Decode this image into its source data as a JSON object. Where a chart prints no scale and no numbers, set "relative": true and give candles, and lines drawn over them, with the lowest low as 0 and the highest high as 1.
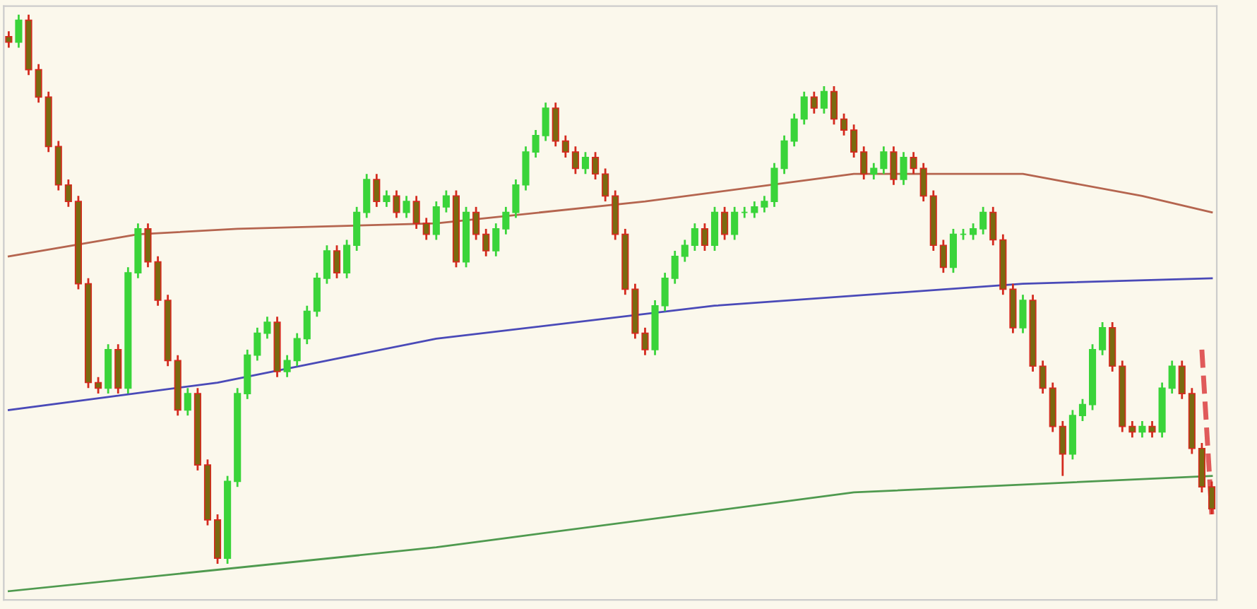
{
  "chart_data": {
    "type": "candlestick",
    "relative": true,
    "categories": [
      null,
      null,
      null,
      null,
      null,
      null,
      null,
      null,
      null,
      null,
      null,
      null,
      null,
      null,
      null,
      null,
      null,
      null,
      null,
      null,
      null,
      null,
      null,
      null,
      null,
      null,
      null,
      null,
      null,
      null,
      null,
      null,
      null,
      null,
      null,
      null,
      null,
      null,
      null,
      null,
      null,
      null,
      null,
      null,
      null,
      null,
      null,
      null,
      null,
      null,
      null,
      null,
      null,
      null,
      null,
      null,
      null,
      null,
      null,
      null,
      null,
      null,
      null,
      null,
      null,
      null,
      null,
      null,
      null,
      null,
      null,
      null,
      null,
      null,
      null,
      null,
      null,
      null,
      null,
      null,
      null,
      null,
      null,
      null,
      null,
      null,
      null,
      null,
      null,
      null,
      null,
      null,
      null,
      null,
      null,
      null,
      null,
      null,
      null,
      null,
      null,
      null,
      null,
      null,
      null,
      null,
      null,
      null,
      null,
      null,
      null,
      null,
      null,
      null,
      null,
      null,
      null,
      null,
      null,
      null,
      null,
      null
    ],
    "ohlc": [
      [
        0.96,
        0.97,
        0.94,
        0.95
      ],
      [
        0.95,
        1.0,
        0.94,
        0.99
      ],
      [
        0.99,
        1.0,
        0.89,
        0.9
      ],
      [
        0.9,
        0.91,
        0.84,
        0.85
      ],
      [
        0.85,
        0.86,
        0.75,
        0.76
      ],
      [
        0.76,
        0.77,
        0.68,
        0.69
      ],
      [
        0.69,
        0.7,
        0.65,
        0.66
      ],
      [
        0.66,
        0.67,
        0.5,
        0.51
      ],
      [
        0.51,
        0.52,
        0.32,
        0.33
      ],
      [
        0.33,
        0.34,
        0.31,
        0.32
      ],
      [
        0.32,
        0.4,
        0.31,
        0.39
      ],
      [
        0.39,
        0.4,
        0.31,
        0.32
      ],
      [
        0.32,
        0.54,
        0.31,
        0.53
      ],
      [
        0.53,
        0.62,
        0.52,
        0.61
      ],
      [
        0.61,
        0.62,
        0.54,
        0.55
      ],
      [
        0.55,
        0.56,
        0.47,
        0.48
      ],
      [
        0.48,
        0.49,
        0.36,
        0.37
      ],
      [
        0.37,
        0.38,
        0.27,
        0.28
      ],
      [
        0.28,
        0.32,
        0.27,
        0.31
      ],
      [
        0.31,
        0.32,
        0.17,
        0.18
      ],
      [
        0.18,
        0.19,
        0.07,
        0.08
      ],
      [
        0.08,
        0.09,
        0.0,
        0.01
      ],
      [
        0.01,
        0.16,
        0.0,
        0.15
      ],
      [
        0.15,
        0.32,
        0.14,
        0.31
      ],
      [
        0.31,
        0.39,
        0.3,
        0.38
      ],
      [
        0.38,
        0.43,
        0.37,
        0.42
      ],
      [
        0.42,
        0.45,
        0.41,
        0.44
      ],
      [
        0.44,
        0.45,
        0.34,
        0.35
      ],
      [
        0.35,
        0.38,
        0.34,
        0.37
      ],
      [
        0.37,
        0.42,
        0.36,
        0.41
      ],
      [
        0.41,
        0.47,
        0.4,
        0.46
      ],
      [
        0.46,
        0.53,
        0.45,
        0.52
      ],
      [
        0.52,
        0.58,
        0.51,
        0.57
      ],
      [
        0.57,
        0.58,
        0.52,
        0.53
      ],
      [
        0.53,
        0.59,
        0.52,
        0.58
      ],
      [
        0.58,
        0.65,
        0.57,
        0.64
      ],
      [
        0.64,
        0.71,
        0.63,
        0.7
      ],
      [
        0.7,
        0.71,
        0.65,
        0.66
      ],
      [
        0.66,
        0.68,
        0.65,
        0.67
      ],
      [
        0.67,
        0.68,
        0.63,
        0.64
      ],
      [
        0.64,
        0.67,
        0.63,
        0.66
      ],
      [
        0.66,
        0.67,
        0.61,
        0.62
      ],
      [
        0.62,
        0.63,
        0.59,
        0.6
      ],
      [
        0.6,
        0.66,
        0.59,
        0.65
      ],
      [
        0.65,
        0.68,
        0.64,
        0.67
      ],
      [
        0.67,
        0.68,
        0.54,
        0.55
      ],
      [
        0.55,
        0.65,
        0.54,
        0.64
      ],
      [
        0.64,
        0.65,
        0.59,
        0.6
      ],
      [
        0.6,
        0.61,
        0.56,
        0.57
      ],
      [
        0.57,
        0.62,
        0.56,
        0.61
      ],
      [
        0.61,
        0.65,
        0.6,
        0.64
      ],
      [
        0.64,
        0.7,
        0.63,
        0.69
      ],
      [
        0.69,
        0.76,
        0.68,
        0.75
      ],
      [
        0.75,
        0.79,
        0.74,
        0.78
      ],
      [
        0.78,
        0.84,
        0.77,
        0.83
      ],
      [
        0.83,
        0.84,
        0.76,
        0.77
      ],
      [
        0.77,
        0.78,
        0.74,
        0.75
      ],
      [
        0.75,
        0.76,
        0.71,
        0.72
      ],
      [
        0.72,
        0.75,
        0.71,
        0.74
      ],
      [
        0.74,
        0.75,
        0.7,
        0.71
      ],
      [
        0.71,
        0.72,
        0.66,
        0.67
      ],
      [
        0.67,
        0.68,
        0.59,
        0.6
      ],
      [
        0.6,
        0.61,
        0.49,
        0.5
      ],
      [
        0.5,
        0.51,
        0.41,
        0.42
      ],
      [
        0.42,
        0.43,
        0.38,
        0.39
      ],
      [
        0.39,
        0.48,
        0.38,
        0.47
      ],
      [
        0.47,
        0.53,
        0.46,
        0.52
      ],
      [
        0.52,
        0.57,
        0.51,
        0.56
      ],
      [
        0.56,
        0.59,
        0.55,
        0.58
      ],
      [
        0.58,
        0.62,
        0.57,
        0.61
      ],
      [
        0.61,
        0.62,
        0.57,
        0.58
      ],
      [
        0.58,
        0.65,
        0.57,
        0.64
      ],
      [
        0.64,
        0.65,
        0.59,
        0.6
      ],
      [
        0.6,
        0.65,
        0.59,
        0.64
      ],
      [
        0.64,
        0.65,
        0.63,
        0.64
      ],
      [
        0.64,
        0.66,
        0.63,
        0.65
      ],
      [
        0.65,
        0.67,
        0.64,
        0.66
      ],
      [
        0.66,
        0.73,
        0.65,
        0.72
      ],
      [
        0.72,
        0.78,
        0.71,
        0.77
      ],
      [
        0.77,
        0.82,
        0.76,
        0.81
      ],
      [
        0.81,
        0.86,
        0.8,
        0.85
      ],
      [
        0.85,
        0.86,
        0.82,
        0.83
      ],
      [
        0.83,
        0.87,
        0.82,
        0.86
      ],
      [
        0.86,
        0.87,
        0.8,
        0.81
      ],
      [
        0.81,
        0.82,
        0.78,
        0.79
      ],
      [
        0.79,
        0.8,
        0.74,
        0.75
      ],
      [
        0.75,
        0.76,
        0.7,
        0.71
      ],
      [
        0.71,
        0.73,
        0.7,
        0.72
      ],
      [
        0.72,
        0.76,
        0.71,
        0.75
      ],
      [
        0.75,
        0.76,
        0.69,
        0.7
      ],
      [
        0.7,
        0.75,
        0.69,
        0.74
      ],
      [
        0.74,
        0.75,
        0.71,
        0.72
      ],
      [
        0.72,
        0.73,
        0.66,
        0.67
      ],
      [
        0.67,
        0.68,
        0.57,
        0.58
      ],
      [
        0.58,
        0.59,
        0.53,
        0.54
      ],
      [
        0.54,
        0.61,
        0.53,
        0.6
      ],
      [
        0.6,
        0.61,
        0.59,
        0.6
      ],
      [
        0.6,
        0.62,
        0.59,
        0.61
      ],
      [
        0.61,
        0.65,
        0.6,
        0.64
      ],
      [
        0.64,
        0.65,
        0.58,
        0.59
      ],
      [
        0.59,
        0.6,
        0.49,
        0.5
      ],
      [
        0.5,
        0.51,
        0.42,
        0.43
      ],
      [
        0.43,
        0.49,
        0.42,
        0.48
      ],
      [
        0.48,
        0.49,
        0.35,
        0.36
      ],
      [
        0.36,
        0.37,
        0.31,
        0.32
      ],
      [
        0.32,
        0.33,
        0.24,
        0.25
      ],
      [
        0.25,
        0.26,
        0.16,
        0.2
      ],
      [
        0.2,
        0.28,
        0.19,
        0.27
      ],
      [
        0.27,
        0.3,
        0.26,
        0.29
      ],
      [
        0.29,
        0.4,
        0.28,
        0.39
      ],
      [
        0.39,
        0.44,
        0.38,
        0.43
      ],
      [
        0.43,
        0.44,
        0.35,
        0.36
      ],
      [
        0.36,
        0.37,
        0.24,
        0.25
      ],
      [
        0.25,
        0.26,
        0.23,
        0.24
      ],
      [
        0.24,
        0.26,
        0.23,
        0.25
      ],
      [
        0.25,
        0.26,
        0.23,
        0.24
      ],
      [
        0.24,
        0.33,
        0.23,
        0.32
      ],
      [
        0.32,
        0.37,
        0.31,
        0.36
      ],
      [
        0.36,
        0.37,
        0.3,
        0.31
      ],
      [
        0.31,
        0.32,
        0.2,
        0.21
      ],
      [
        0.21,
        0.22,
        0.13,
        0.14
      ],
      [
        0.14,
        0.15,
        0.09,
        0.1
      ]
    ],
    "series": [
      {
        "type": "line",
        "color": "#b5654f",
        "values": [
          0.56,
          null,
          null,
          null,
          null,
          null,
          null,
          null,
          null,
          null,
          null,
          null,
          null,
          0.6,
          null,
          null,
          null,
          null,
          null,
          null,
          null,
          null,
          null,
          0.61,
          null,
          null,
          null,
          null,
          null,
          null,
          null,
          null,
          null,
          null,
          null,
          null,
          null,
          null,
          null,
          null,
          null,
          null,
          null,
          0.62,
          null,
          null,
          null,
          null,
          null,
          null,
          null,
          null,
          null,
          null,
          null,
          null,
          null,
          null,
          null,
          null,
          null,
          null,
          null,
          null,
          0.66,
          null,
          null,
          null,
          null,
          null,
          null,
          null,
          null,
          null,
          null,
          null,
          null,
          null,
          null,
          null,
          null,
          null,
          null,
          null,
          null,
          0.71,
          null,
          null,
          null,
          null,
          null,
          null,
          null,
          null,
          null,
          null,
          null,
          null,
          null,
          null,
          null,
          null,
          0.71,
          null,
          null,
          null,
          null,
          null,
          null,
          null,
          null,
          null,
          null,
          null,
          0.67,
          null,
          null,
          null,
          null,
          null,
          null,
          0.64
        ]
      },
      {
        "type": "line",
        "color": "#4a4ab8",
        "values": [
          0.28,
          null,
          null,
          null,
          null,
          null,
          null,
          null,
          null,
          null,
          null,
          null,
          null,
          null,
          null,
          null,
          null,
          null,
          null,
          null,
          null,
          0.33,
          null,
          null,
          null,
          null,
          null,
          null,
          null,
          null,
          null,
          null,
          null,
          null,
          null,
          null,
          null,
          null,
          null,
          null,
          null,
          null,
          null,
          0.41,
          null,
          null,
          null,
          null,
          null,
          null,
          null,
          null,
          null,
          null,
          null,
          null,
          null,
          null,
          null,
          null,
          null,
          null,
          null,
          null,
          null,
          null,
          null,
          null,
          null,
          null,
          null,
          0.47,
          null,
          null,
          null,
          null,
          null,
          null,
          null,
          null,
          null,
          null,
          null,
          null,
          null,
          null,
          null,
          null,
          null,
          null,
          null,
          null,
          null,
          null,
          null,
          null,
          null,
          null,
          null,
          null,
          null,
          null,
          0.51,
          null,
          null,
          null,
          null,
          null,
          null,
          null,
          null,
          null,
          null,
          null,
          null,
          null,
          null,
          null,
          null,
          null,
          null,
          0.52
        ]
      },
      {
        "type": "line",
        "color": "#4f9a4f",
        "values": [
          -0.05,
          null,
          null,
          null,
          null,
          null,
          null,
          null,
          null,
          null,
          null,
          null,
          null,
          null,
          null,
          null,
          null,
          null,
          null,
          null,
          null,
          null,
          null,
          null,
          null,
          null,
          null,
          null,
          null,
          null,
          null,
          null,
          null,
          null,
          null,
          null,
          null,
          null,
          null,
          null,
          null,
          null,
          null,
          0.03,
          null,
          null,
          null,
          null,
          null,
          null,
          null,
          null,
          null,
          null,
          null,
          null,
          null,
          null,
          null,
          null,
          null,
          null,
          null,
          null,
          null,
          null,
          null,
          null,
          null,
          null,
          null,
          null,
          null,
          null,
          null,
          null,
          null,
          null,
          null,
          null,
          null,
          null,
          null,
          null,
          null,
          0.13,
          null,
          null,
          null,
          null,
          null,
          null,
          null,
          null,
          null,
          null,
          null,
          null,
          null,
          null,
          null,
          null,
          null,
          null,
          null,
          null,
          null,
          null,
          null,
          null,
          null,
          null,
          null,
          null,
          null,
          null,
          null,
          null,
          null,
          null,
          null,
          0.16
        ]
      },
      {
        "type": "line",
        "color": "#e05a5a",
        "line_style": "dashed",
        "values": [
          null,
          null,
          null,
          null,
          null,
          null,
          null,
          null,
          null,
          null,
          null,
          null,
          null,
          null,
          null,
          null,
          null,
          null,
          null,
          null,
          null,
          null,
          null,
          null,
          null,
          null,
          null,
          null,
          null,
          null,
          null,
          null,
          null,
          null,
          null,
          null,
          null,
          null,
          null,
          null,
          null,
          null,
          null,
          null,
          null,
          null,
          null,
          null,
          null,
          null,
          null,
          null,
          null,
          null,
          null,
          null,
          null,
          null,
          null,
          null,
          null,
          null,
          null,
          null,
          null,
          null,
          null,
          null,
          null,
          null,
          null,
          null,
          null,
          null,
          null,
          null,
          null,
          null,
          null,
          null,
          null,
          null,
          null,
          null,
          null,
          null,
          null,
          null,
          null,
          null,
          null,
          null,
          null,
          null,
          null,
          null,
          null,
          null,
          null,
          null,
          null,
          null,
          null,
          null,
          null,
          null,
          null,
          null,
          null,
          null,
          null,
          null,
          null,
          null,
          null,
          null,
          null,
          null,
          null,
          null,
          0.39,
          0.09
        ]
      }
    ]
  }
}
